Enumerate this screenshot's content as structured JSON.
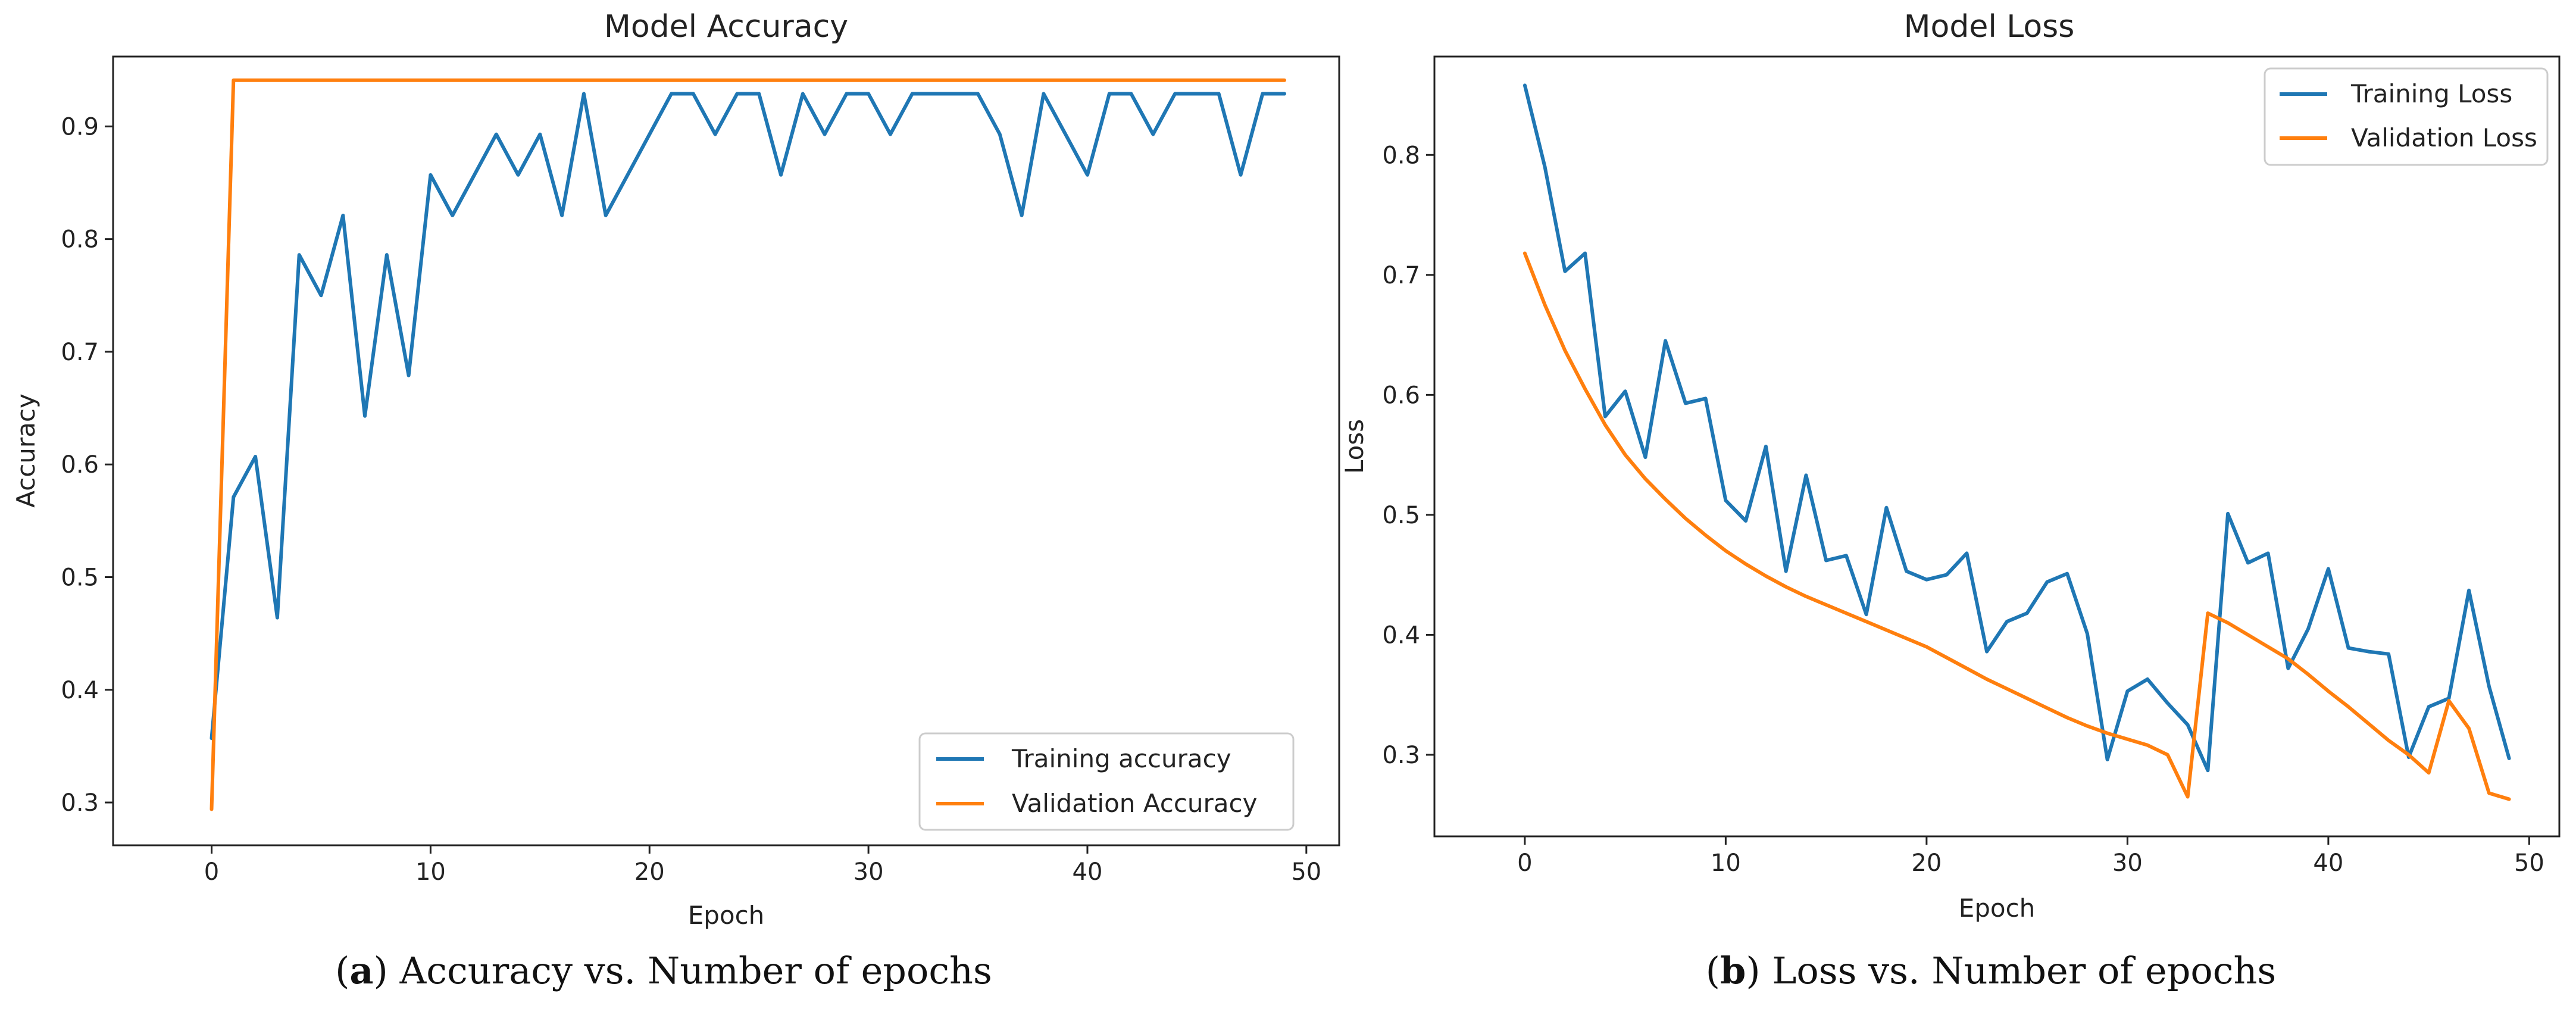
{
  "chart_data": [
    {
      "id": "accuracy",
      "type": "line",
      "title": "Model Accuracy",
      "xlabel": "Epoch",
      "ylabel": "Accuracy",
      "xlim": [
        -4.5,
        51.5
      ],
      "ylim": [
        0.262,
        0.962
      ],
      "xticks": [
        0,
        10,
        20,
        30,
        40,
        50
      ],
      "yticks": [
        0.3,
        0.4,
        0.5,
        0.6,
        0.7,
        0.8,
        0.9
      ],
      "legend_position": "lower-right",
      "caption_letter": "a",
      "caption_text": "Accuracy vs. Number of epochs",
      "series": [
        {
          "name": "Training accuracy",
          "color": "#1f77b4",
          "x": [
            0,
            1,
            2,
            3,
            4,
            5,
            6,
            7,
            8,
            9,
            10,
            11,
            12,
            13,
            14,
            15,
            16,
            17,
            18,
            19,
            20,
            21,
            22,
            23,
            24,
            25,
            26,
            27,
            28,
            29,
            30,
            31,
            32,
            33,
            34,
            35,
            36,
            37,
            38,
            39,
            40,
            41,
            42,
            43,
            44,
            45,
            46,
            47,
            48,
            49
          ],
          "y": [
            0.357,
            0.571,
            0.607,
            0.464,
            0.786,
            0.75,
            0.821,
            0.643,
            0.786,
            0.679,
            0.857,
            0.821,
            0.857,
            0.893,
            0.857,
            0.893,
            0.821,
            0.929,
            0.821,
            0.857,
            0.893,
            0.929,
            0.929,
            0.893,
            0.929,
            0.929,
            0.857,
            0.929,
            0.893,
            0.929,
            0.929,
            0.893,
            0.929,
            0.929,
            0.929,
            0.929,
            0.893,
            0.821,
            0.929,
            0.893,
            0.857,
            0.929,
            0.929,
            0.893,
            0.929,
            0.929,
            0.929,
            0.857,
            0.929,
            0.929
          ]
        },
        {
          "name": "Validation Accuracy",
          "color": "#ff7f0e",
          "x": [
            0,
            1,
            2,
            3,
            4,
            5,
            6,
            7,
            8,
            9,
            10,
            11,
            12,
            13,
            14,
            15,
            16,
            17,
            18,
            19,
            20,
            21,
            22,
            23,
            24,
            25,
            26,
            27,
            28,
            29,
            30,
            31,
            32,
            33,
            34,
            35,
            36,
            37,
            38,
            39,
            40,
            41,
            42,
            43,
            44,
            45,
            46,
            47,
            48,
            49
          ],
          "y": [
            0.294,
            0.941,
            0.941,
            0.941,
            0.941,
            0.941,
            0.941,
            0.941,
            0.941,
            0.941,
            0.941,
            0.941,
            0.941,
            0.941,
            0.941,
            0.941,
            0.941,
            0.941,
            0.941,
            0.941,
            0.941,
            0.941,
            0.941,
            0.941,
            0.941,
            0.941,
            0.941,
            0.941,
            0.941,
            0.941,
            0.941,
            0.941,
            0.941,
            0.941,
            0.941,
            0.941,
            0.941,
            0.941,
            0.941,
            0.941,
            0.941,
            0.941,
            0.941,
            0.941,
            0.941,
            0.941,
            0.941,
            0.941,
            0.941,
            0.941
          ]
        }
      ]
    },
    {
      "id": "loss",
      "type": "line",
      "title": "Model Loss",
      "xlabel": "Epoch",
      "ylabel": "Loss",
      "xlim": [
        -4.5,
        51.5
      ],
      "ylim": [
        0.232,
        0.882
      ],
      "xticks": [
        0,
        10,
        20,
        30,
        40,
        50
      ],
      "yticks": [
        0.3,
        0.4,
        0.5,
        0.6,
        0.7,
        0.8
      ],
      "legend_position": "upper-right",
      "caption_letter": "b",
      "caption_text": "Loss vs. Number of epochs",
      "series": [
        {
          "name": "Training Loss",
          "color": "#1f77b4",
          "x": [
            0,
            1,
            2,
            3,
            4,
            5,
            6,
            7,
            8,
            9,
            10,
            11,
            12,
            13,
            14,
            15,
            16,
            17,
            18,
            19,
            20,
            21,
            22,
            23,
            24,
            25,
            26,
            27,
            28,
            29,
            30,
            31,
            32,
            33,
            34,
            35,
            36,
            37,
            38,
            39,
            40,
            41,
            42,
            43,
            44,
            45,
            46,
            47,
            48,
            49
          ],
          "y": [
            0.858,
            0.79,
            0.703,
            0.718,
            0.582,
            0.603,
            0.548,
            0.645,
            0.593,
            0.597,
            0.512,
            0.495,
            0.557,
            0.453,
            0.533,
            0.462,
            0.466,
            0.417,
            0.506,
            0.453,
            0.446,
            0.45,
            0.468,
            0.386,
            0.411,
            0.418,
            0.444,
            0.451,
            0.401,
            0.296,
            0.353,
            0.363,
            0.343,
            0.325,
            0.287,
            0.501,
            0.46,
            0.468,
            0.372,
            0.405,
            0.455,
            0.389,
            0.386,
            0.384,
            0.298,
            0.34,
            0.347,
            0.437,
            0.357,
            0.297
          ]
        },
        {
          "name": "Validation Loss",
          "color": "#ff7f0e",
          "x": [
            0,
            1,
            2,
            3,
            4,
            5,
            6,
            7,
            8,
            9,
            10,
            11,
            12,
            13,
            14,
            15,
            16,
            17,
            18,
            19,
            20,
            21,
            22,
            23,
            24,
            25,
            26,
            27,
            28,
            29,
            30,
            31,
            32,
            33,
            34,
            35,
            36,
            37,
            38,
            39,
            40,
            41,
            42,
            43,
            44,
            45,
            46,
            47,
            48,
            49
          ],
          "y": [
            0.718,
            0.675,
            0.637,
            0.605,
            0.575,
            0.55,
            0.53,
            0.513,
            0.497,
            0.483,
            0.47,
            0.459,
            0.449,
            0.44,
            0.432,
            0.425,
            0.418,
            0.411,
            0.404,
            0.397,
            0.39,
            0.381,
            0.372,
            0.363,
            0.355,
            0.347,
            0.339,
            0.331,
            0.324,
            0.318,
            0.313,
            0.308,
            0.3,
            0.265,
            0.418,
            0.41,
            0.4,
            0.39,
            0.38,
            0.367,
            0.353,
            0.34,
            0.326,
            0.312,
            0.3,
            0.285,
            0.345,
            0.322,
            0.268,
            0.263
          ]
        }
      ]
    }
  ]
}
